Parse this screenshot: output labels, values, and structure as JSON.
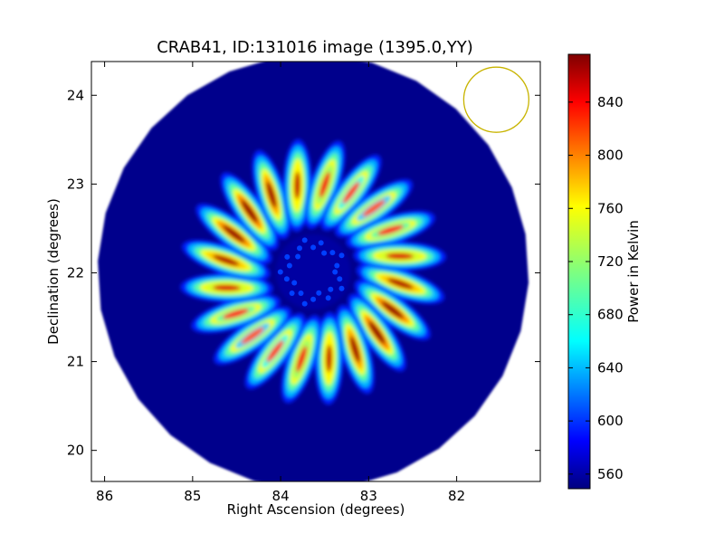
{
  "chart_data": {
    "type": "heatmap",
    "title": "CRAB41, ID:131016 image (1395.0,YY)",
    "xlabel": "Right Ascension (degrees)",
    "ylabel": "Declination (degrees)",
    "x_ticks": [
      "86",
      "85",
      "84",
      "83",
      "82"
    ],
    "x_tick_values": [
      86,
      85,
      84,
      83,
      82
    ],
    "xlim": [
      86.15,
      81.05
    ],
    "y_ticks": [
      "20",
      "21",
      "22",
      "23",
      "24"
    ],
    "y_tick_values": [
      20,
      21,
      22,
      23,
      24
    ],
    "ylim": [
      19.65,
      24.38
    ],
    "x_axis_inverted": true,
    "grid": false,
    "colorbar": {
      "label": "Power in Kelvin",
      "ticks": [
        "560",
        "600",
        "640",
        "680",
        "720",
        "760",
        "800",
        "840"
      ],
      "tick_values": [
        560,
        600,
        640,
        680,
        720,
        760,
        800,
        840
      ],
      "range": [
        549,
        876
      ],
      "colormap": "jet"
    },
    "image": {
      "center_ra": 83.63,
      "center_dec": 22.01,
      "radius_deg": 2.45,
      "background_level": 553,
      "pattern": "radial petal lobes",
      "petal_count": 20,
      "ring_inner_deg": 0.45,
      "ring_outer_deg": 1.45,
      "peak_level": 870
    },
    "beam_circle": {
      "center_ra": 81.55,
      "center_dec": 23.95,
      "radius_deg": 0.37,
      "color": "#c8b400"
    }
  }
}
